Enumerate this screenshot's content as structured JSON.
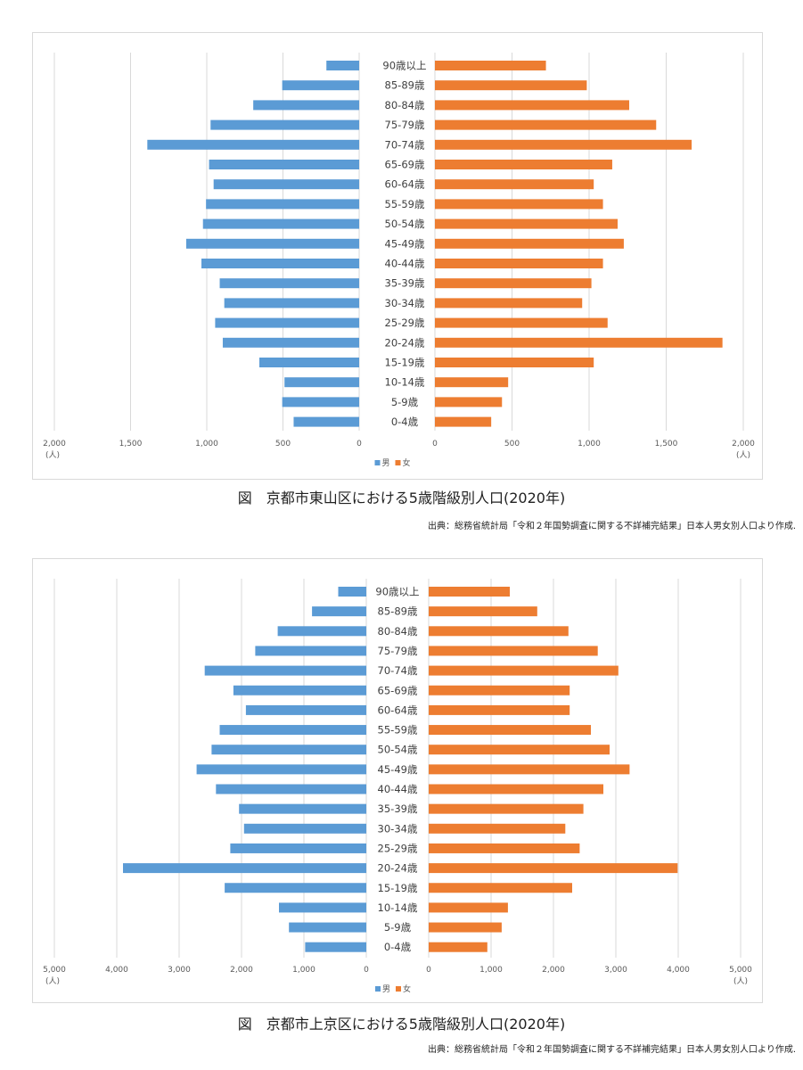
{
  "chart_data": [
    {
      "type": "bar",
      "orientation": "population-pyramid",
      "title": "図　京都市東山区における5歳階級別人口(2020年)",
      "source": "出典：総務省統計局「令和２年国勢調査に関する不詳補完結果」日本人男女別人口より作成.",
      "categories": [
        "90歳以上",
        "85-89歳",
        "80-84歳",
        "75-79歳",
        "70-74歳",
        "65-69歳",
        "60-64歳",
        "55-59歳",
        "50-54歳",
        "45-49歳",
        "40-44歳",
        "35-39歳",
        "30-34歳",
        "25-29歳",
        "20-24歳",
        "15-19歳",
        "10-14歳",
        "5-9歳",
        "0-4歳"
      ],
      "series": [
        {
          "name": "男",
          "color": "#5b9bd5",
          "side": "left",
          "values": [
            215,
            505,
            695,
            975,
            1390,
            985,
            955,
            1005,
            1025,
            1135,
            1035,
            915,
            885,
            945,
            895,
            655,
            490,
            505,
            430
          ]
        },
        {
          "name": "女",
          "color": "#ed7d31",
          "side": "right",
          "values": [
            720,
            985,
            1260,
            1435,
            1665,
            1150,
            1030,
            1090,
            1185,
            1225,
            1090,
            1015,
            955,
            1120,
            1865,
            1030,
            475,
            435,
            365
          ]
        }
      ],
      "xlim": [
        0,
        2000
      ],
      "left_ticks": [
        "2,000",
        "1,500",
        "1,000",
        "500",
        "0"
      ],
      "right_ticks": [
        "0",
        "500",
        "1,000",
        "1,500",
        "2,000"
      ],
      "unit_label": "(人)",
      "grid": true,
      "legend_position": "bottom-center"
    },
    {
      "type": "bar",
      "orientation": "population-pyramid",
      "title": "図　京都市上京区における5歳階級別人口(2020年)",
      "source": "出典：総務省統計局「令和２年国勢調査に関する不詳補完結果」日本人男女別人口より作成.",
      "categories": [
        "90歳以上",
        "85-89歳",
        "80-84歳",
        "75-79歳",
        "70-74歳",
        "65-69歳",
        "60-64歳",
        "55-59歳",
        "50-54歳",
        "45-49歳",
        "40-44歳",
        "35-39歳",
        "30-34歳",
        "25-29歳",
        "20-24歳",
        "15-19歳",
        "10-14歳",
        "5-9歳",
        "0-4歳"
      ],
      "series": [
        {
          "name": "男",
          "color": "#5b9bd5",
          "side": "left",
          "values": [
            450,
            870,
            1420,
            1780,
            2590,
            2130,
            1930,
            2350,
            2480,
            2720,
            2410,
            2040,
            1960,
            2180,
            3900,
            2270,
            1400,
            1240,
            980
          ]
        },
        {
          "name": "女",
          "color": "#ed7d31",
          "side": "right",
          "values": [
            1300,
            1740,
            2240,
            2710,
            3040,
            2260,
            2260,
            2600,
            2900,
            3220,
            2800,
            2480,
            2190,
            2420,
            3990,
            2300,
            1270,
            1170,
            940
          ]
        }
      ],
      "xlim": [
        0,
        5000
      ],
      "left_ticks": [
        "5,000",
        "4,000",
        "3,000",
        "2,000",
        "1,000",
        "0"
      ],
      "right_ticks": [
        "0",
        "1,000",
        "2,000",
        "3,000",
        "4,000",
        "5,000"
      ],
      "unit_label": "(人)",
      "grid": true,
      "legend_position": "bottom-center"
    }
  ]
}
